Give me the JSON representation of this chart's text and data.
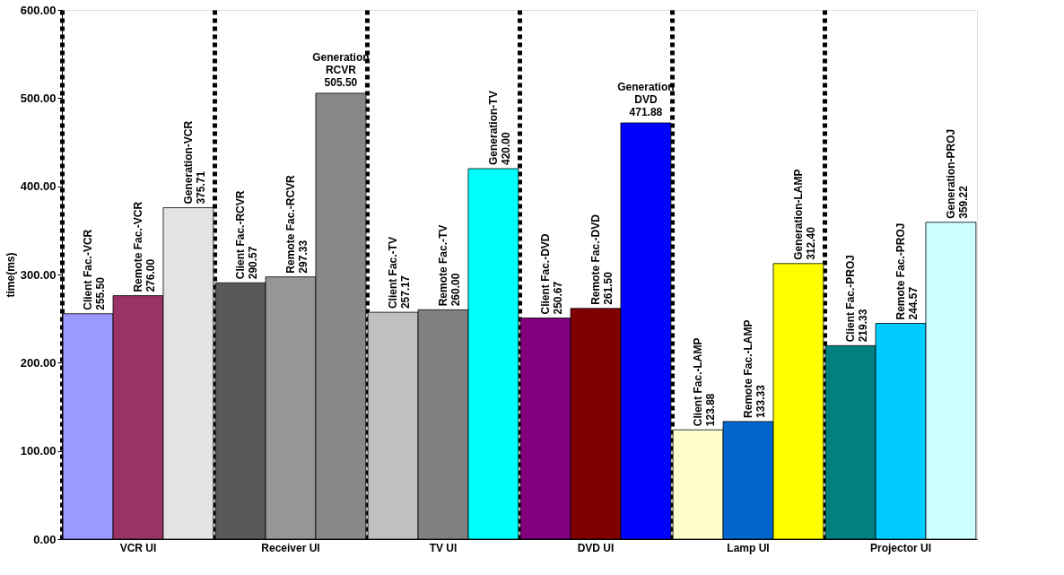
{
  "chart_data": {
    "type": "bar",
    "ylabel": "time(ms)",
    "categories": [
      "VCR UI",
      "Receiver UI",
      "TV UI",
      "DVD UI",
      "Lamp UI",
      "Projector UI"
    ],
    "series": [
      {
        "colors": [
          "#9999ff",
          "#595959",
          "#c0c0c0",
          "#800080",
          "#ffffcc",
          "#008080"
        ],
        "values": [
          255.5,
          290.57,
          257.17,
          250.67,
          123.88,
          219.33
        ],
        "value_labels": [
          "Client Fac.-VCR\n255.50",
          "Client Fac.-RCVR\n290.57",
          "Client Fac.-TV\n257.17",
          "Client Fac.-DVD\n250.67",
          "Client Fac.-LAMP\n123.88",
          "Client Fac.-PROJ\n219.33"
        ]
      },
      {
        "colors": [
          "#993366",
          "#969696",
          "#808080",
          "#800000",
          "#0066cc",
          "#00ccff"
        ],
        "values": [
          276.0,
          297.33,
          260.0,
          261.5,
          133.33,
          244.57
        ],
        "value_labels": [
          "Remote Fac.-VCR\n276.00",
          "Remote Fac.-RCVR\n297.33",
          "Remote Fac.-TV\n260.00",
          "Remote Fac.-DVD\n261.50",
          "Remote Fac.-LAMP\n133.33",
          "Remote Fac.-PROJ\n244.57"
        ]
      },
      {
        "colors": [
          "#e3e3e3",
          "#888888",
          "#00ffff",
          "#0000ff",
          "#ffff00",
          "#ccffff"
        ],
        "values": [
          375.71,
          505.5,
          420.0,
          471.88,
          312.4,
          359.22
        ],
        "value_labels": [
          "Generation-VCR\n375.71",
          "Generation\nRCVR\n505.50",
          "Generation-TV\n420.00",
          "Generation\nDVD\n471.88",
          "Generation-LAMP\n312.40",
          "Generation-PROJ\n359.22"
        ]
      }
    ],
    "ylim": [
      0,
      600
    ],
    "yticks": [
      {
        "value": 0,
        "label": "0.00"
      },
      {
        "value": 100,
        "label": "100.00"
      },
      {
        "value": 200,
        "label": "200.00"
      },
      {
        "value": 300,
        "label": "300.00"
      },
      {
        "value": 400,
        "label": "400.00"
      },
      {
        "value": 500,
        "label": "500.00"
      },
      {
        "value": 600,
        "label": "600.00"
      }
    ],
    "grid": "x"
  }
}
